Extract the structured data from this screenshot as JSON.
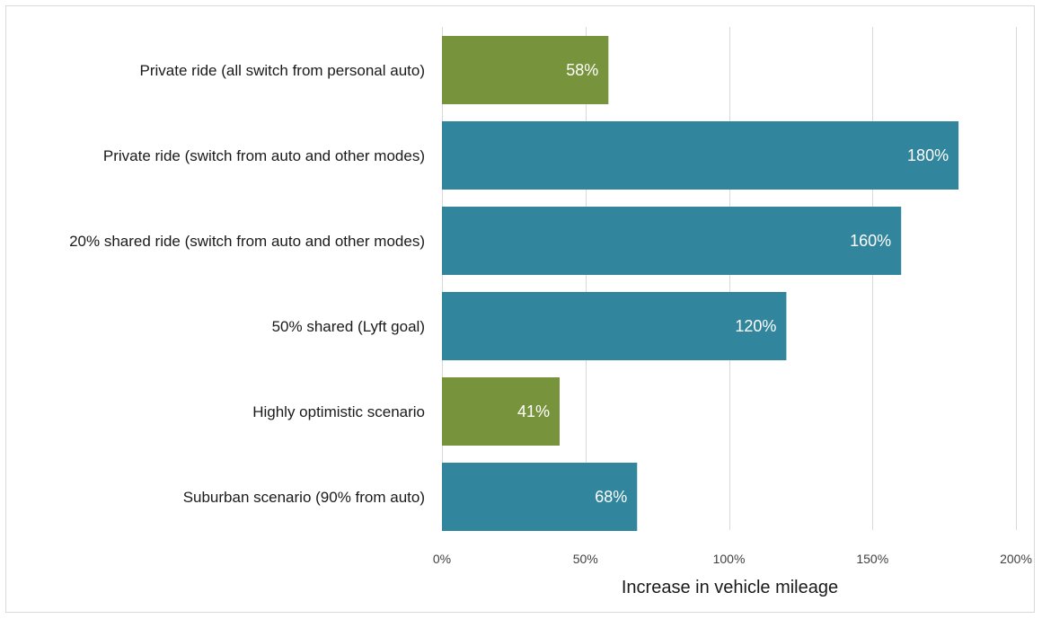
{
  "chart_data": {
    "type": "bar",
    "orientation": "horizontal",
    "title": "",
    "xlabel": "Increase in vehicle mileage",
    "ylabel": "",
    "xlim": [
      0,
      200
    ],
    "xticks": [
      0,
      50,
      100,
      150,
      200
    ],
    "tick_format": "%",
    "grid": true,
    "legend": "none",
    "categories": [
      "Private ride (all switch from personal auto)",
      "Private ride (switch from auto and other modes)",
      "20% shared ride (switch from auto and other modes)",
      "50% shared (Lyft goal)",
      "Highly optimistic scenario",
      "Suburban scenario (90% from auto)"
    ],
    "values": [
      58,
      180,
      160,
      120,
      41,
      68
    ],
    "data_labels": [
      "58%",
      "180%",
      "160%",
      "120%",
      "41%",
      "68%"
    ],
    "colors": [
      "#77933c",
      "#31859c",
      "#31859c",
      "#31859c",
      "#77933c",
      "#31859c"
    ]
  }
}
